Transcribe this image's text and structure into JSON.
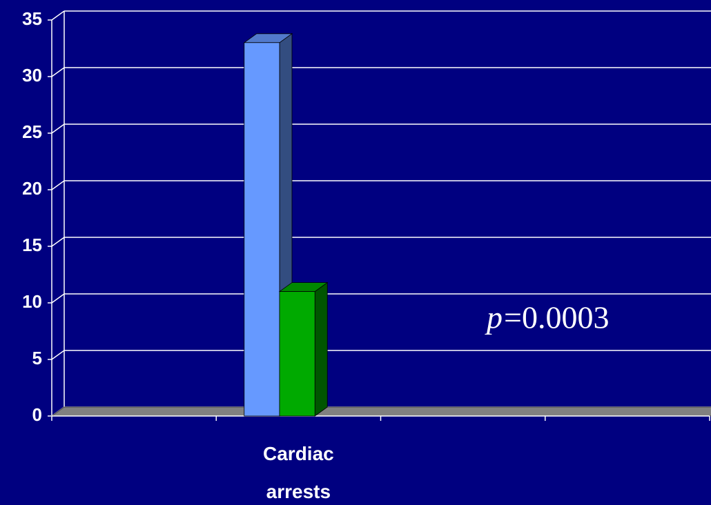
{
  "chart_data": {
    "type": "bar3d",
    "categories": [
      null,
      "Cardiac arrests",
      null,
      null
    ],
    "series": [
      {
        "color": "#6699ff",
        "values": [
          null,
          33,
          null,
          null
        ]
      },
      {
        "color": "#00aa00",
        "values": [
          null,
          11,
          null,
          null
        ]
      }
    ],
    "ylim": [
      0,
      35
    ],
    "yticks": [
      0,
      5,
      10,
      15,
      20,
      25,
      30,
      35
    ],
    "grid": true,
    "annotation": [
      "p",
      "=0.0003"
    ]
  }
}
